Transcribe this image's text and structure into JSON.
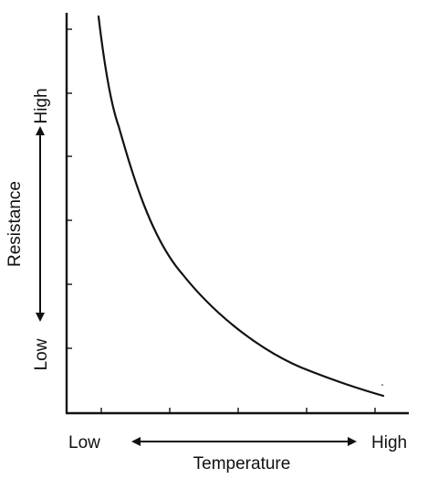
{
  "chart_data": {
    "type": "line",
    "title": "",
    "xlabel": "Temperature",
    "ylabel": "Resistance",
    "x_tick_labels": {
      "low": "Low",
      "high": "High"
    },
    "y_tick_labels": {
      "low": "Low",
      "high": "High"
    },
    "x_scale": "qualitative, no numeric values",
    "y_scale": "qualitative, no numeric values",
    "grid": false,
    "legend": "none",
    "series": [
      {
        "shape": "decreasing convex curve, steep at low temperature and flattening at high temperature",
        "color": "#111111"
      }
    ]
  }
}
